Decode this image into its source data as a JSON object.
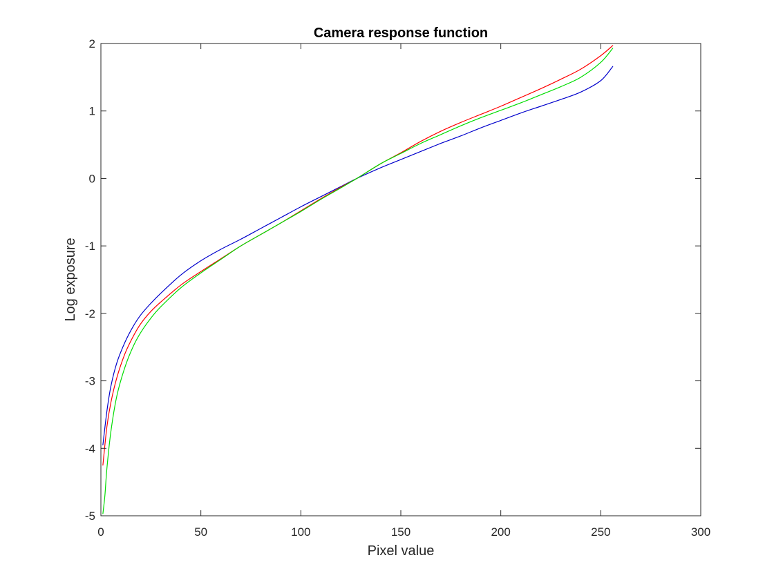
{
  "chart_data": {
    "type": "line",
    "title": "Camera response function",
    "xlabel": "Pixel value",
    "ylabel": "Log exposure",
    "xlim": [
      0,
      300
    ],
    "ylim": [
      -5,
      2
    ],
    "xticks": [
      "0",
      "50",
      "100",
      "150",
      "200",
      "250",
      "300"
    ],
    "yticks": [
      "2",
      "1",
      "0",
      "-1",
      "-2",
      "-3",
      "-4",
      "-5"
    ],
    "grid": false,
    "box": true,
    "series": [
      {
        "color": "#ff0000",
        "x": [
          1,
          3,
          5,
          8,
          12,
          16,
          20,
          25,
          30,
          40,
          50,
          60,
          70,
          80,
          90,
          100,
          110,
          120,
          128,
          140,
          150,
          160,
          170,
          180,
          190,
          200,
          210,
          220,
          230,
          240,
          250,
          256
        ],
        "values": [
          -4.25,
          -3.68,
          -3.32,
          -2.95,
          -2.6,
          -2.35,
          -2.15,
          -1.97,
          -1.83,
          -1.58,
          -1.38,
          -1.19,
          -1.0,
          -0.83,
          -0.66,
          -0.48,
          -0.3,
          -0.13,
          0.0,
          0.22,
          0.38,
          0.55,
          0.7,
          0.83,
          0.95,
          1.07,
          1.2,
          1.33,
          1.47,
          1.62,
          1.82,
          1.97
        ]
      },
      {
        "color": "#00dd00",
        "x": [
          1,
          2,
          3,
          5,
          8,
          12,
          16,
          20,
          25,
          30,
          40,
          50,
          60,
          70,
          80,
          90,
          100,
          110,
          120,
          128,
          140,
          150,
          160,
          170,
          180,
          190,
          200,
          210,
          220,
          230,
          240,
          250,
          256
        ],
        "values": [
          -4.97,
          -4.7,
          -4.3,
          -3.75,
          -3.22,
          -2.8,
          -2.5,
          -2.28,
          -2.07,
          -1.9,
          -1.62,
          -1.4,
          -1.2,
          -1.0,
          -0.83,
          -0.66,
          -0.49,
          -0.31,
          -0.14,
          0.0,
          0.22,
          0.37,
          0.52,
          0.65,
          0.78,
          0.9,
          1.01,
          1.12,
          1.24,
          1.36,
          1.5,
          1.72,
          1.93
        ]
      },
      {
        "color": "#0000cc",
        "x": [
          1,
          3,
          5,
          8,
          12,
          16,
          20,
          25,
          30,
          40,
          50,
          60,
          70,
          80,
          90,
          100,
          110,
          120,
          128,
          140,
          150,
          160,
          170,
          180,
          190,
          200,
          210,
          220,
          230,
          240,
          250,
          256
        ],
        "values": [
          -3.95,
          -3.45,
          -3.08,
          -2.73,
          -2.43,
          -2.2,
          -2.02,
          -1.85,
          -1.7,
          -1.43,
          -1.22,
          -1.05,
          -0.9,
          -0.74,
          -0.58,
          -0.42,
          -0.27,
          -0.12,
          0.0,
          0.16,
          0.28,
          0.4,
          0.52,
          0.63,
          0.75,
          0.86,
          0.97,
          1.07,
          1.17,
          1.28,
          1.45,
          1.66
        ]
      }
    ]
  }
}
